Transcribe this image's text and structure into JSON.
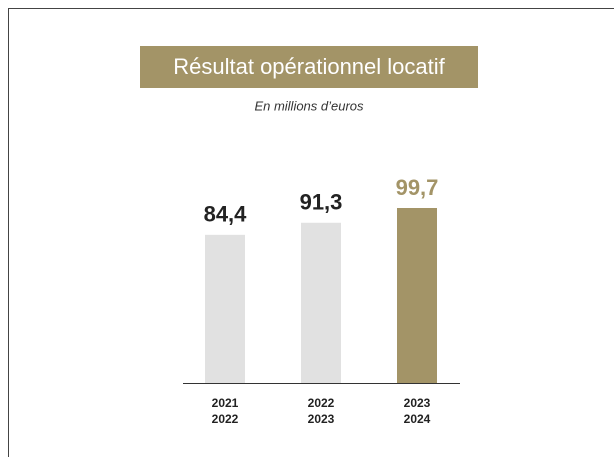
{
  "chart_data": {
    "type": "bar",
    "title": "Résultat opérationnel locatif",
    "subtitle": "En millions d’euros",
    "categories": [
      [
        "2021",
        "2022"
      ],
      [
        "2022",
        "2023"
      ],
      [
        "2023",
        "2024"
      ]
    ],
    "values": [
      84.4,
      91.3,
      99.7
    ],
    "value_labels": [
      "84,4",
      "91,3",
      "99,7"
    ],
    "colors": [
      "#e1e1e1",
      "#e1e1e1",
      "#a39467"
    ],
    "label_colors": [
      "#222222",
      "#222222",
      "#a39467"
    ]
  }
}
